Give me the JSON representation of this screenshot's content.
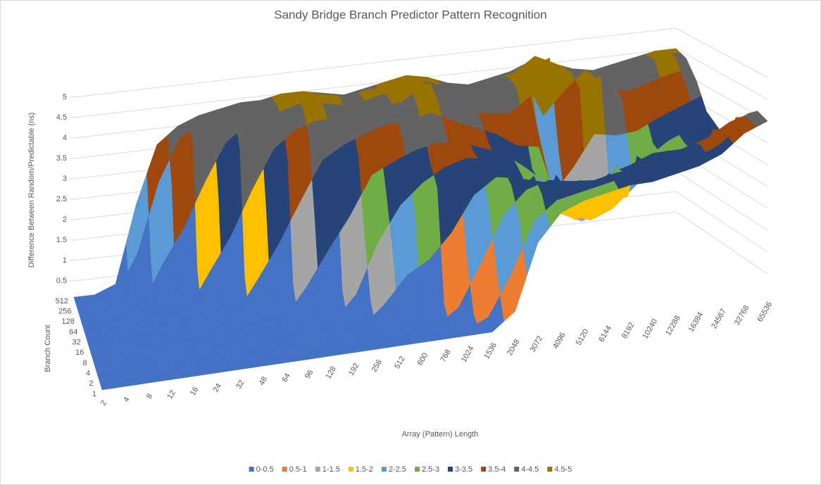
{
  "chart_data": {
    "type": "surface",
    "title": "Sandy Bridge Branch Predictor Pattern Recognition",
    "z_axis_label": "Difference Between  Random/Predictable (ns)",
    "depth_axis_label": "Branch Count",
    "x_axis_label": "Array (Pattern) Length",
    "categories": [
      2,
      4,
      8,
      12,
      16,
      24,
      32,
      48,
      64,
      96,
      128,
      192,
      256,
      512,
      600,
      768,
      1024,
      1536,
      2048,
      3072,
      4096,
      5120,
      6144,
      8192,
      10240,
      12288,
      16384,
      24567,
      32768,
      65536
    ],
    "zlim": [
      0,
      5
    ],
    "zticks": [
      0.5,
      1,
      1.5,
      2,
      2.5,
      3,
      3.5,
      4,
      4.5,
      5
    ],
    "grid": true,
    "legend_position": "bottom",
    "legend": [
      {
        "name": "0-0.5",
        "color": "#4472c4"
      },
      {
        "name": "0.5-1",
        "color": "#ed7d31"
      },
      {
        "name": "1-1.5",
        "color": "#a5a5a5"
      },
      {
        "name": "1.5-2",
        "color": "#ffc000"
      },
      {
        "name": "2-2.5",
        "color": "#5b9bd5"
      },
      {
        "name": "2.5-3",
        "color": "#70ad47"
      },
      {
        "name": "3-3.5",
        "color": "#264478"
      },
      {
        "name": "3.5-4",
        "color": "#9e480e"
      },
      {
        "name": "4-4.5",
        "color": "#636363"
      },
      {
        "name": "4.5-5",
        "color": "#997300"
      }
    ],
    "series": [
      {
        "name": 1,
        "values": [
          0.1,
          0.1,
          0.1,
          0.1,
          0.1,
          0.1,
          0.1,
          0.1,
          0.1,
          0.1,
          0.1,
          0.1,
          0.1,
          0.1,
          0.1,
          0.1,
          0.1,
          0.1,
          0.5,
          2.0,
          2.6,
          2.8,
          2.9,
          3.0,
          3.0,
          3.1,
          3.2,
          3.4,
          3.8,
          4.0
        ]
      },
      {
        "name": 2,
        "values": [
          0.1,
          0.1,
          0.1,
          0.1,
          0.1,
          0.1,
          0.1,
          0.1,
          0.1,
          0.1,
          0.1,
          0.1,
          0.1,
          0.1,
          0.1,
          0.1,
          0.1,
          0.6,
          2.0,
          2.8,
          3.0,
          3.0,
          3.1,
          3.2,
          3.2,
          3.3,
          3.4,
          3.6,
          3.9,
          4.1
        ]
      },
      {
        "name": 4,
        "values": [
          0.1,
          0.1,
          0.1,
          0.1,
          0.1,
          0.1,
          0.1,
          0.1,
          0.1,
          0.1,
          0.1,
          0.1,
          0.1,
          0.1,
          0.1,
          0.1,
          0.8,
          2.2,
          2.9,
          3.1,
          3.2,
          3.0,
          2.8,
          2.9,
          3.0,
          3.2,
          3.4,
          3.5,
          3.8,
          3.9
        ]
      },
      {
        "name": 8,
        "values": [
          0.1,
          0.1,
          0.1,
          0.1,
          0.1,
          0.1,
          0.1,
          0.1,
          0.1,
          0.1,
          0.1,
          0.1,
          0.1,
          1.0,
          2.2,
          2.8,
          3.2,
          3.4,
          3.4,
          3.0,
          2.6,
          2.4,
          2.5,
          2.8,
          3.0,
          3.2,
          3.0,
          2.9,
          3.0,
          3.2
        ]
      },
      {
        "name": 16,
        "values": [
          0.1,
          0.1,
          0.1,
          0.1,
          0.1,
          0.1,
          0.1,
          0.1,
          0.1,
          0.1,
          0.1,
          0.1,
          1.2,
          2.6,
          3.0,
          3.3,
          3.5,
          3.6,
          3.4,
          3.2,
          2.8,
          2.4,
          1.8,
          1.6,
          1.8,
          2.2,
          2.6,
          2.8,
          2.8,
          3.0
        ]
      },
      {
        "name": 32,
        "values": [
          0.1,
          0.1,
          0.1,
          0.1,
          0.1,
          0.1,
          0.1,
          0.1,
          0.1,
          0.1,
          1.4,
          3.0,
          3.4,
          3.8,
          3.9,
          4.0,
          4.0,
          3.8,
          3.6,
          3.4,
          3.0,
          2.5,
          1.5,
          1.3,
          1.5,
          2.0,
          2.5,
          2.8,
          3.0,
          3.2
        ]
      },
      {
        "name": 64,
        "values": [
          0.1,
          0.1,
          0.1,
          0.1,
          0.1,
          0.1,
          0.1,
          0.1,
          1.6,
          3.2,
          3.8,
          4.0,
          4.2,
          4.2,
          4.4,
          4.3,
          4.6,
          4.3,
          4.0,
          3.8,
          3.5,
          3.8,
          1.5,
          1.2,
          1.4,
          2.0,
          2.6,
          3.0,
          3.2,
          3.4
        ]
      },
      {
        "name": 128,
        "values": [
          0.1,
          0.1,
          0.1,
          0.1,
          0.1,
          0.1,
          1.8,
          3.4,
          4.0,
          4.2,
          4.4,
          4.5,
          4.3,
          4.2,
          4.4,
          4.6,
          5.0,
          4.4,
          4.2,
          4.0,
          4.2,
          4.6,
          2.0,
          3.5,
          4.8,
          4.0,
          3.5,
          3.6,
          3.8,
          4.0
        ]
      },
      {
        "name": 256,
        "values": [
          0.1,
          0.1,
          0.1,
          0.1,
          2.0,
          3.6,
          4.0,
          4.2,
          4.3,
          4.4,
          4.5,
          4.6,
          4.5,
          4.4,
          4.5,
          4.5,
          4.6,
          4.4,
          4.2,
          4.2,
          4.4,
          4.5,
          5.0,
          4.6,
          4.2,
          4.0,
          4.2,
          4.4,
          4.5,
          4.4
        ]
      },
      {
        "name": 512,
        "values": [
          0.1,
          0.1,
          0.3,
          2.2,
          3.6,
          4.0,
          4.2,
          4.3,
          4.4,
          4.4,
          4.5,
          4.5,
          4.4,
          4.3,
          4.4,
          4.5,
          4.6,
          4.5,
          4.3,
          4.2,
          4.3,
          4.4,
          4.6,
          4.5,
          4.3,
          4.2,
          4.3,
          4.4,
          4.5,
          4.5
        ]
      }
    ]
  }
}
